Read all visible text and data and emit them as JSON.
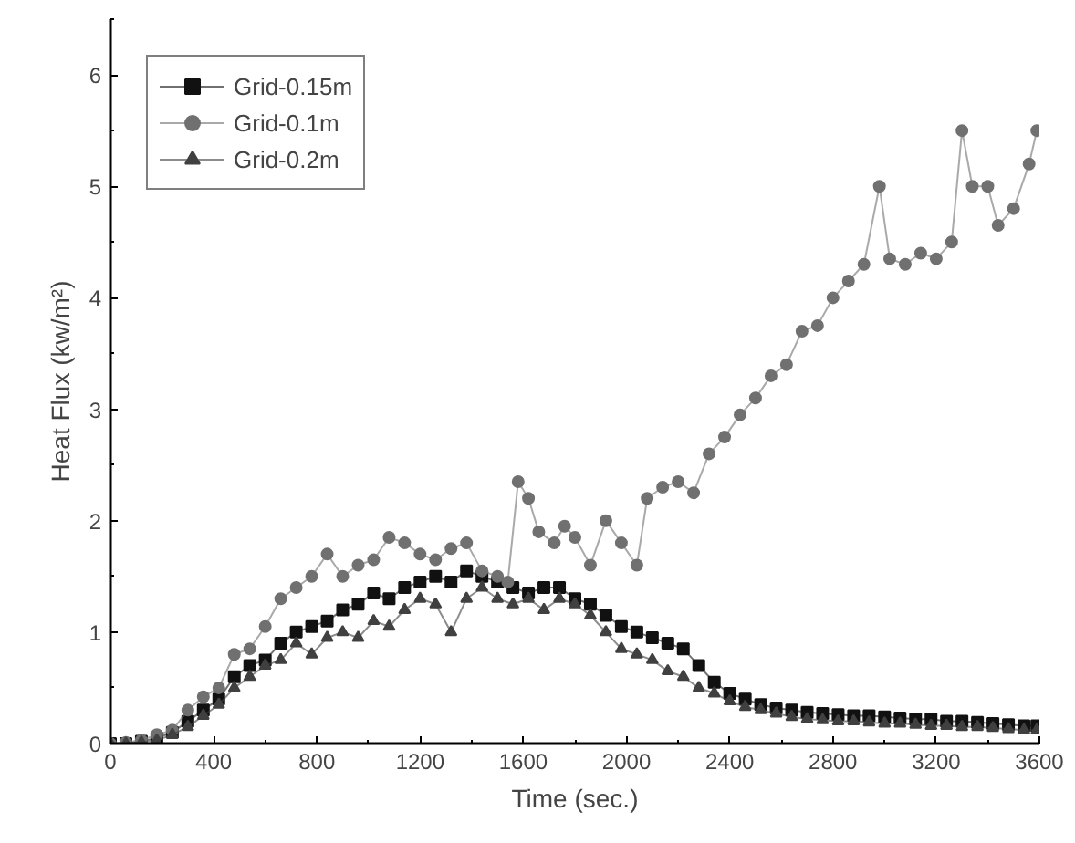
{
  "chart_data": {
    "type": "line",
    "xlabel": "Time (sec.)",
    "ylabel": "Heat Flux (kw/m²)",
    "xlim": [
      0,
      3600
    ],
    "ylim": [
      0,
      6.5
    ],
    "xticks": [
      0,
      400,
      800,
      1200,
      1600,
      2000,
      2400,
      2800,
      3200,
      3600
    ],
    "yticks": [
      0,
      1,
      2,
      3,
      4,
      5,
      6
    ],
    "grid": false,
    "legend": "top left",
    "line_style": "solid",
    "series": [
      {
        "name": "Grid-0.15m",
        "color": "#111111",
        "marker": "square",
        "x": [
          0,
          60,
          120,
          180,
          240,
          300,
          360,
          420,
          480,
          540,
          600,
          660,
          720,
          780,
          840,
          900,
          960,
          1020,
          1080,
          1140,
          1200,
          1260,
          1320,
          1380,
          1440,
          1500,
          1560,
          1620,
          1680,
          1740,
          1800,
          1860,
          1920,
          1980,
          2040,
          2100,
          2160,
          2220,
          2280,
          2340,
          2400,
          2460,
          2520,
          2580,
          2640,
          2700,
          2760,
          2820,
          2880,
          2940,
          3000,
          3060,
          3120,
          3180,
          3240,
          3300,
          3360,
          3420,
          3480,
          3540,
          3590
        ],
        "values": [
          0,
          0,
          0.02,
          0.05,
          0.1,
          0.2,
          0.3,
          0.4,
          0.6,
          0.7,
          0.75,
          0.9,
          1.0,
          1.05,
          1.1,
          1.2,
          1.25,
          1.35,
          1.3,
          1.4,
          1.45,
          1.5,
          1.45,
          1.55,
          1.5,
          1.45,
          1.4,
          1.35,
          1.4,
          1.4,
          1.3,
          1.25,
          1.15,
          1.05,
          1.0,
          0.95,
          0.9,
          0.85,
          0.7,
          0.55,
          0.45,
          0.4,
          0.35,
          0.32,
          0.3,
          0.28,
          0.27,
          0.26,
          0.25,
          0.25,
          0.24,
          0.23,
          0.22,
          0.22,
          0.2,
          0.2,
          0.19,
          0.18,
          0.17,
          0.16,
          0.16
        ]
      },
      {
        "name": "Grid-0.1m",
        "color": "#707070",
        "marker": "circle",
        "x": [
          0,
          60,
          120,
          180,
          240,
          300,
          360,
          420,
          480,
          540,
          600,
          660,
          720,
          780,
          840,
          900,
          960,
          1020,
          1080,
          1140,
          1200,
          1260,
          1320,
          1380,
          1440,
          1500,
          1540,
          1580,
          1620,
          1660,
          1720,
          1760,
          1800,
          1860,
          1920,
          1980,
          2040,
          2080,
          2140,
          2200,
          2260,
          2320,
          2380,
          2440,
          2500,
          2560,
          2620,
          2680,
          2740,
          2800,
          2860,
          2920,
          2980,
          3020,
          3080,
          3140,
          3200,
          3260,
          3300,
          3340,
          3400,
          3440,
          3500,
          3560,
          3590
        ],
        "values": [
          0,
          0.01,
          0.03,
          0.08,
          0.12,
          0.3,
          0.42,
          0.5,
          0.8,
          0.85,
          1.05,
          1.3,
          1.4,
          1.5,
          1.7,
          1.5,
          1.6,
          1.65,
          1.85,
          1.8,
          1.7,
          1.65,
          1.75,
          1.8,
          1.55,
          1.5,
          1.45,
          2.35,
          2.2,
          1.9,
          1.8,
          1.95,
          1.85,
          1.6,
          2.0,
          1.8,
          1.6,
          2.2,
          2.3,
          2.35,
          2.25,
          2.6,
          2.75,
          2.95,
          3.1,
          3.3,
          3.4,
          3.7,
          3.75,
          4.0,
          4.15,
          4.3,
          5.0,
          4.35,
          4.3,
          4.4,
          4.35,
          4.5,
          5.5,
          5.0,
          5.0,
          4.65,
          4.8,
          5.2,
          5.5
        ]
      },
      {
        "name": "Grid-0.2m",
        "color": "#404040",
        "marker": "triangle",
        "x": [
          0,
          60,
          120,
          180,
          240,
          300,
          360,
          420,
          480,
          540,
          600,
          660,
          720,
          780,
          840,
          900,
          960,
          1020,
          1080,
          1140,
          1200,
          1260,
          1320,
          1380,
          1440,
          1500,
          1560,
          1620,
          1680,
          1740,
          1800,
          1860,
          1920,
          1980,
          2040,
          2100,
          2160,
          2220,
          2280,
          2340,
          2400,
          2460,
          2520,
          2580,
          2640,
          2700,
          2760,
          2820,
          2880,
          2940,
          3000,
          3060,
          3120,
          3180,
          3240,
          3300,
          3360,
          3420,
          3480,
          3540,
          3590
        ],
        "values": [
          0,
          0,
          0.01,
          0.03,
          0.08,
          0.15,
          0.25,
          0.35,
          0.5,
          0.6,
          0.7,
          0.75,
          0.9,
          0.8,
          0.95,
          1.0,
          0.95,
          1.1,
          1.05,
          1.2,
          1.3,
          1.25,
          1.0,
          1.3,
          1.4,
          1.3,
          1.25,
          1.3,
          1.2,
          1.3,
          1.25,
          1.15,
          1.0,
          0.85,
          0.8,
          0.75,
          0.65,
          0.6,
          0.5,
          0.45,
          0.38,
          0.33,
          0.3,
          0.27,
          0.24,
          0.22,
          0.21,
          0.2,
          0.2,
          0.19,
          0.18,
          0.18,
          0.17,
          0.16,
          0.16,
          0.15,
          0.15,
          0.14,
          0.13,
          0.12,
          0.12
        ]
      }
    ]
  }
}
